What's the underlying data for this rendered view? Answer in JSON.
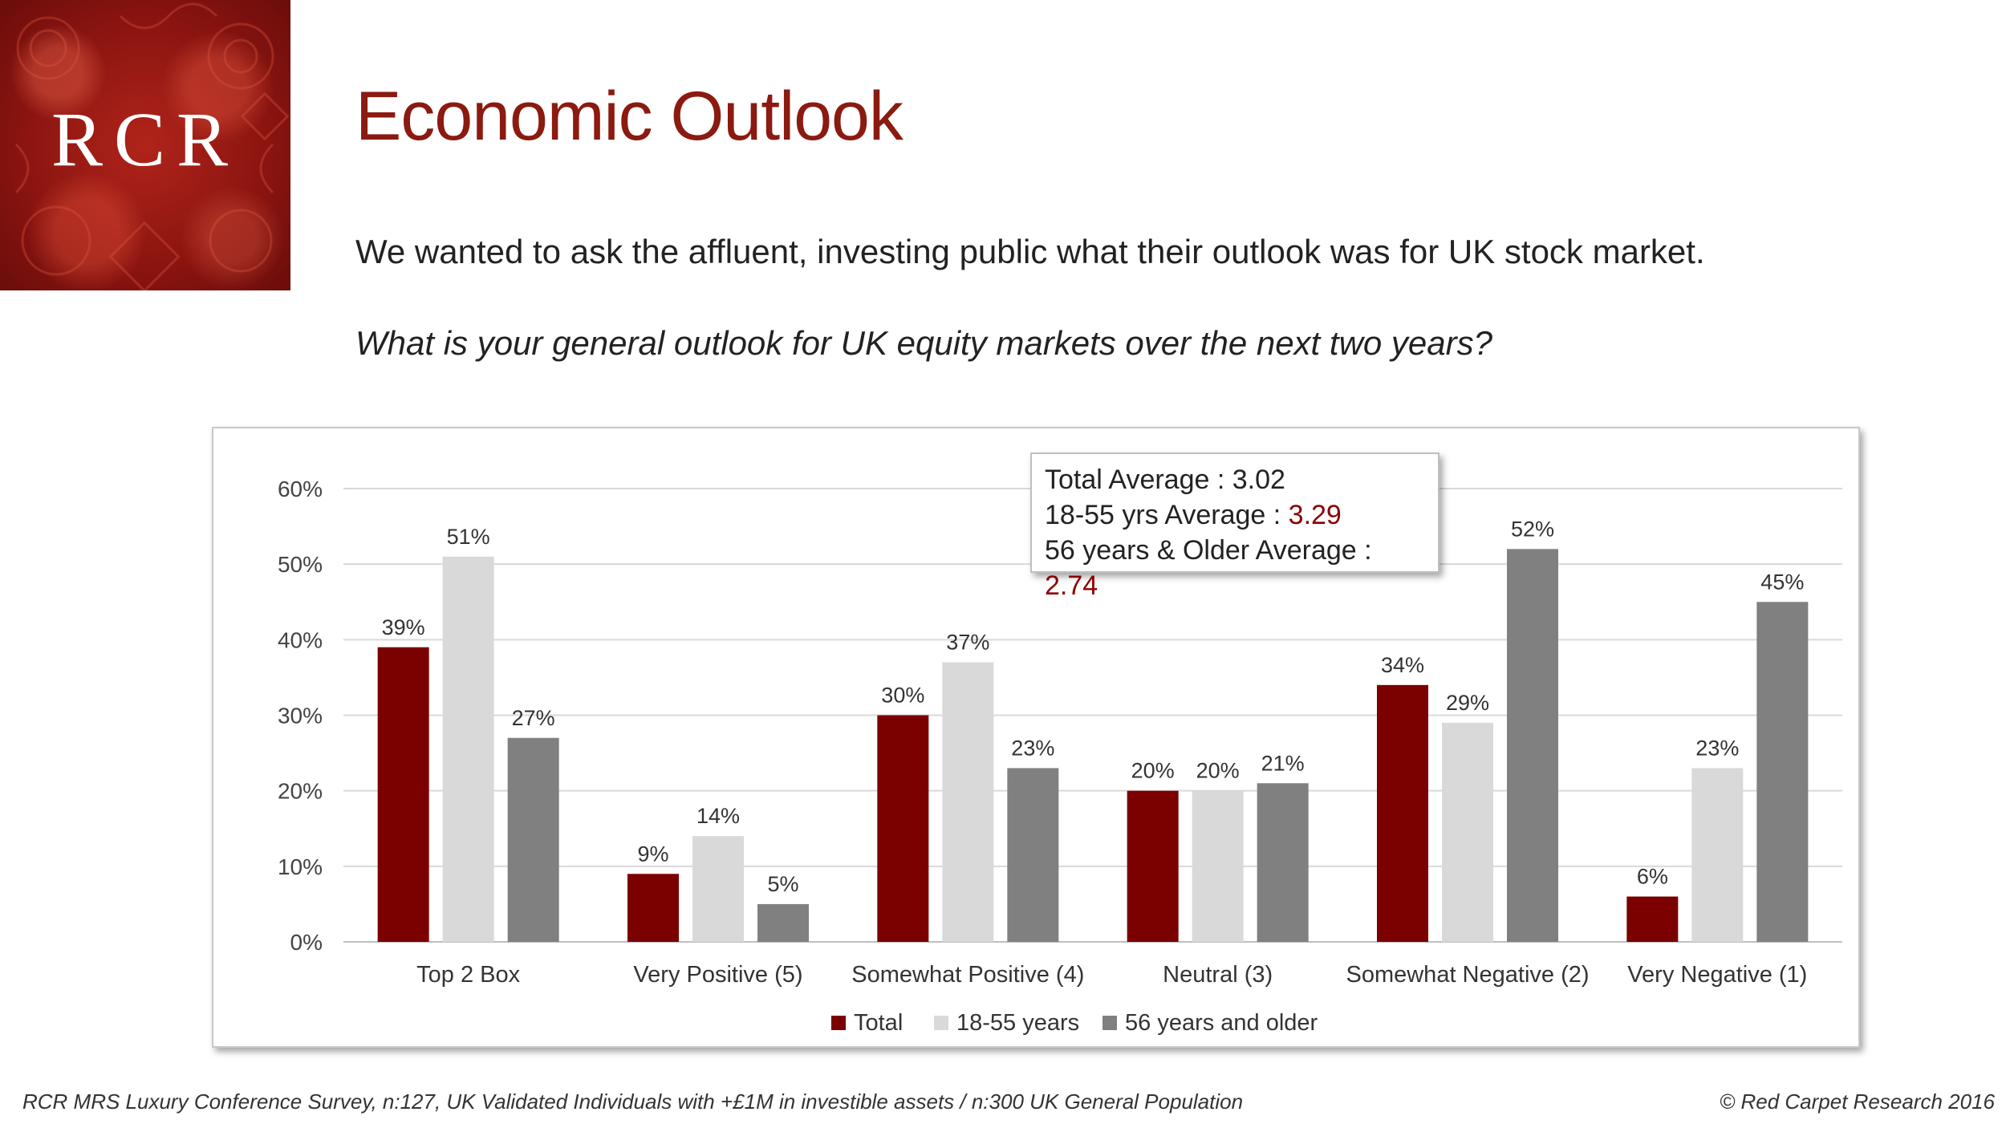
{
  "logo": {
    "text": "RCR"
  },
  "page": {
    "title": "Economic Outlook",
    "intro": "We wanted to ask the affluent, investing public what their outlook was for UK stock market.",
    "question": "What is your general outlook for UK equity markets over the next two years?"
  },
  "averages": {
    "total_label": "Total Average : ",
    "total_value": "3.02",
    "young_label": "18-55 yrs Average : ",
    "young_value": "3.29",
    "older_label": "56 years & Older Average : ",
    "older_value": "2.74"
  },
  "footer": {
    "source": "RCR MRS Luxury Conference Survey, n:127, UK Validated Individuals with +£1M in investible assets / n:300 UK General Population",
    "copyright": "© Red Carpet Research 2016"
  },
  "colors": {
    "total": "#7b0000",
    "young": "#d9d9d9",
    "older": "#808080",
    "title": "#8b1a10",
    "grid": "#d9d9d9"
  },
  "chart_data": {
    "type": "bar",
    "categories": [
      "Top 2 Box",
      "Very Positive (5)",
      "Somewhat Positive (4)",
      "Neutral (3)",
      "Somewhat Negative (2)",
      "Very Negative (1)"
    ],
    "series": [
      {
        "name": "Total",
        "values": [
          39,
          9,
          30,
          20,
          34,
          6
        ]
      },
      {
        "name": "18-55 years",
        "values": [
          51,
          14,
          37,
          20,
          29,
          23
        ]
      },
      {
        "name": "56 years and older",
        "values": [
          27,
          5,
          23,
          21,
          52,
          45
        ]
      }
    ],
    "value_suffix": "%",
    "ylim": [
      0,
      60
    ],
    "yticks": [
      0,
      10,
      20,
      30,
      40,
      50,
      60
    ],
    "ytick_labels": [
      "0%",
      "10%",
      "20%",
      "30%",
      "40%",
      "50%",
      "60%"
    ],
    "title": "",
    "xlabel": "",
    "ylabel": "",
    "grid": true,
    "legend_position": "bottom"
  }
}
